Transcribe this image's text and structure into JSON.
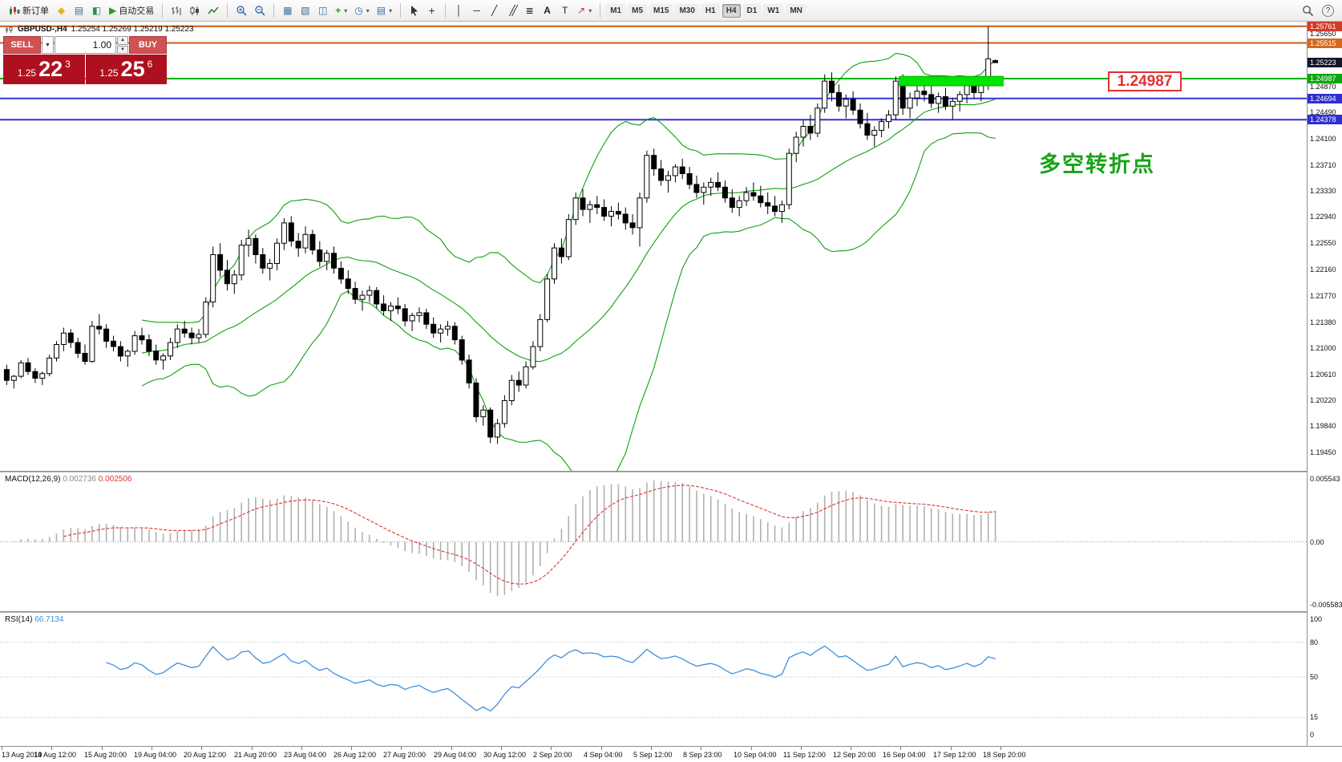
{
  "toolbar": {
    "new_order": "新订单",
    "autotrading": "自动交易",
    "timeframes": [
      "M1",
      "M5",
      "M15",
      "M30",
      "H1",
      "H4",
      "D1",
      "W1",
      "MN"
    ],
    "active_timeframe": "H4",
    "icon_names": [
      "new-order-icon",
      "metaeditor-icon",
      "market-watch-icon",
      "navigator-icon",
      "autotrading-icon",
      "bar-chart-icon",
      "candlestick-icon",
      "line-chart-icon",
      "zoom-in-icon",
      "zoom-out-icon",
      "tile-windows-icon",
      "cascade-windows-icon",
      "arrange-windows-icon",
      "add-indicator-icon",
      "periods-icon",
      "templates-icon",
      "cursor-icon",
      "crosshair-icon",
      "vertical-line-icon",
      "horizontal-line-icon",
      "trendline-icon",
      "channel-icon",
      "fibonacci-icon",
      "text-icon",
      "label-icon",
      "arrow-tool-icon",
      "search-icon",
      "help-icon"
    ]
  },
  "icons": {
    "metaeditor": "◆",
    "market_watch": "▤",
    "navigator": "◧",
    "autotrading_play": "▶",
    "tile_windows": "▦",
    "cascade_windows": "▧",
    "arrange_windows": "◫",
    "add_indicator": "+",
    "periods_clock": "◷",
    "dropdown": "▾",
    "crosshair": "+",
    "vertical_line": "│",
    "horizontal_line": "─",
    "trendline": "╱",
    "channel": "╱╱",
    "fibonacci": "≣",
    "text_tool": "A",
    "label_tool": "T",
    "arrow_tool": "↗",
    "help": "?",
    "vol_down": "▼",
    "spin_up": "▲",
    "spin_down": "▼"
  },
  "chart_header": {
    "symbol": "GBPUSD-,H4",
    "ohlc": "1.25254 1.25269 1.25219 1.25223"
  },
  "trade_panel": {
    "sell_label": "SELL",
    "buy_label": "BUY",
    "volume": "1.00",
    "sell_price_main": "1.25",
    "sell_price_big": "22",
    "sell_price_sup": "3",
    "buy_price_main": "1.25",
    "buy_price_big": "25",
    "buy_price_sup": "6"
  },
  "annotations": {
    "price_callout": "1.24987",
    "note_text": "多空转折点"
  },
  "price_axis": {
    "plain_labels": [
      "1.25650",
      "1.24870",
      "1.24490",
      "1.24100",
      "1.23710",
      "1.23330",
      "1.22940",
      "1.22550",
      "1.22160",
      "1.21770",
      "1.21380",
      "1.21000",
      "1.20610",
      "1.20220",
      "1.19840",
      "1.19450"
    ],
    "badges": [
      {
        "text": "1.25761",
        "price": 1.25761,
        "bg": "#d43c2a"
      },
      {
        "text": "1.25515",
        "price": 1.25515,
        "bg": "#d4691e"
      },
      {
        "text": "1.25223",
        "price": 1.25223,
        "bg": "#14142c"
      },
      {
        "text": "1.24987",
        "price": 1.24987,
        "bg": "#0ca60c"
      },
      {
        "text": "1.24694",
        "price": 1.24694,
        "bg": "#2f2fd0"
      },
      {
        "text": "1.24378",
        "price": 1.24378,
        "bg": "#2f2fd0"
      }
    ]
  },
  "time_axis": [
    "13 Aug 2019",
    "14 Aug 12:00",
    "15 Aug 20:00",
    "19 Aug 04:00",
    "20 Aug 12:00",
    "21 Aug 20:00",
    "23 Aug 04:00",
    "26 Aug 12:00",
    "27 Aug 20:00",
    "29 Aug 04:00",
    "30 Aug 12:00",
    "2 Sep 20:00",
    "4 Sep 04:00",
    "5 Sep 12:00",
    "8 Sep 23:00",
    "10 Sep 04:00",
    "11 Sep 12:00",
    "12 Sep 20:00",
    "16 Sep 04:00",
    "17 Sep 12:00",
    "18 Sep 20:00"
  ],
  "macd_panel": {
    "label": "MACD(12,26,9)",
    "value_main": "0.002736",
    "value_signal": "0.002506",
    "axis_top": "0.005543",
    "axis_zero": "0.00",
    "axis_bottom": "-0.005583"
  },
  "rsi_panel": {
    "label": "RSI(14)",
    "value": "66.7134",
    "axis_labels": [
      {
        "text": "100",
        "v": 100
      },
      {
        "text": "80",
        "v": 80
      },
      {
        "text": "50",
        "v": 50
      },
      {
        "text": "15",
        "v": 15
      },
      {
        "text": "0",
        "v": 0
      }
    ],
    "levels": [
      80,
      50,
      15
    ]
  },
  "chart_data": {
    "type": "candlestick",
    "symbol": "GBPUSD",
    "timeframe": "H4",
    "price_range": [
      1.1918,
      1.2583
    ],
    "current_bar": {
      "open": 1.25254,
      "high": 1.25269,
      "low": 1.25219,
      "close": 1.25223
    },
    "hlines": [
      {
        "price": 1.25761,
        "color": "#cc5a11",
        "width": 2
      },
      {
        "price": 1.25515,
        "color": "#cc5a11",
        "width": 2
      },
      {
        "price": 1.24987,
        "color": "#00b000",
        "width": 2
      },
      {
        "price": 1.24694,
        "color": "#3434d4",
        "width": 2
      },
      {
        "price": 1.24378,
        "color": "#3434d4",
        "width": 2
      }
    ],
    "zone": {
      "price_top": 1.2502,
      "price_bottom": 1.2488,
      "from_bar": 126,
      "to_bar": 140.6,
      "fill": "#00e400",
      "stroke": "#00b000"
    },
    "bollinger": {
      "period": 20,
      "deviation": 2,
      "color": "#0fa00f"
    },
    "macd": {
      "fast": 12,
      "slow": 26,
      "signal": 9,
      "histogram_color": "#b0b0b0",
      "signal_color": "#e03131"
    },
    "rsi": {
      "period": 14,
      "color": "#3f8fdd"
    },
    "candles": [
      [
        1.2068,
        1.2075,
        1.2045,
        1.2052
      ],
      [
        1.2052,
        1.206,
        1.204,
        1.2058
      ],
      [
        1.2058,
        1.2082,
        1.2055,
        1.2078
      ],
      [
        1.2078,
        1.2085,
        1.206,
        1.2065
      ],
      [
        1.2065,
        1.207,
        1.2048,
        1.2055
      ],
      [
        1.2055,
        1.2065,
        1.2045,
        1.2062
      ],
      [
        1.2062,
        1.209,
        1.2058,
        1.2085
      ],
      [
        1.2085,
        1.211,
        1.208,
        1.2105
      ],
      [
        1.2105,
        1.213,
        1.2095,
        1.2122
      ],
      [
        1.2122,
        1.2128,
        1.21,
        1.2108
      ],
      [
        1.2108,
        1.2115,
        1.2085,
        1.2092
      ],
      [
        1.2092,
        1.2105,
        1.2075,
        1.208
      ],
      [
        1.208,
        1.214,
        1.2078,
        1.2132
      ],
      [
        1.2132,
        1.215,
        1.212,
        1.2128
      ],
      [
        1.2128,
        1.2135,
        1.21,
        1.211
      ],
      [
        1.211,
        1.2118,
        1.2095,
        1.2102
      ],
      [
        1.2102,
        1.211,
        1.208,
        1.2088
      ],
      [
        1.2088,
        1.2098,
        1.2072,
        1.2095
      ],
      [
        1.2095,
        1.2125,
        1.209,
        1.2118
      ],
      [
        1.2118,
        1.213,
        1.2105,
        1.2112
      ],
      [
        1.2112,
        1.212,
        1.2088,
        1.2095
      ],
      [
        1.2095,
        1.2105,
        1.2075,
        1.2082
      ],
      [
        1.2082,
        1.2092,
        1.2068,
        1.2088
      ],
      [
        1.2088,
        1.2115,
        1.2082,
        1.2108
      ],
      [
        1.2108,
        1.2135,
        1.21,
        1.2128
      ],
      [
        1.2128,
        1.214,
        1.2115,
        1.2122
      ],
      [
        1.2122,
        1.213,
        1.2105,
        1.2115
      ],
      [
        1.2115,
        1.2128,
        1.2108,
        1.212
      ],
      [
        1.212,
        1.2175,
        1.2115,
        1.2168
      ],
      [
        1.2168,
        1.225,
        1.216,
        1.2238
      ],
      [
        1.2238,
        1.2255,
        1.2205,
        1.2215
      ],
      [
        1.2215,
        1.223,
        1.2185,
        1.2195
      ],
      [
        1.2195,
        1.2215,
        1.218,
        1.2208
      ],
      [
        1.2208,
        1.226,
        1.22,
        1.2252
      ],
      [
        1.2252,
        1.2275,
        1.2235,
        1.2262
      ],
      [
        1.2262,
        1.2268,
        1.2225,
        1.2238
      ],
      [
        1.2238,
        1.2248,
        1.221,
        1.2218
      ],
      [
        1.2218,
        1.2232,
        1.22,
        1.2225
      ],
      [
        1.2225,
        1.2262,
        1.2215,
        1.2255
      ],
      [
        1.2255,
        1.2292,
        1.2245,
        1.2285
      ],
      [
        1.2285,
        1.2295,
        1.225,
        1.2258
      ],
      [
        1.2258,
        1.227,
        1.2235,
        1.2248
      ],
      [
        1.2248,
        1.228,
        1.224,
        1.2268
      ],
      [
        1.2268,
        1.2275,
        1.2238,
        1.2245
      ],
      [
        1.2245,
        1.2258,
        1.222,
        1.2228
      ],
      [
        1.2228,
        1.2245,
        1.2215,
        1.224
      ],
      [
        1.224,
        1.225,
        1.221,
        1.2218
      ],
      [
        1.2218,
        1.2228,
        1.2195,
        1.2202
      ],
      [
        1.2202,
        1.2215,
        1.218,
        1.2188
      ],
      [
        1.2188,
        1.2198,
        1.2165,
        1.2172
      ],
      [
        1.2172,
        1.2185,
        1.2155,
        1.2178
      ],
      [
        1.2178,
        1.2192,
        1.2168,
        1.2185
      ],
      [
        1.2185,
        1.219,
        1.2158,
        1.2165
      ],
      [
        1.2165,
        1.2178,
        1.2148,
        1.2155
      ],
      [
        1.2155,
        1.2168,
        1.214,
        1.2162
      ],
      [
        1.2162,
        1.2175,
        1.215,
        1.2158
      ],
      [
        1.2158,
        1.2165,
        1.2132,
        1.214
      ],
      [
        1.214,
        1.2152,
        1.2125,
        1.2148
      ],
      [
        1.2148,
        1.216,
        1.2138,
        1.2152
      ],
      [
        1.2152,
        1.2158,
        1.2128,
        1.2135
      ],
      [
        1.2135,
        1.2145,
        1.2115,
        1.2122
      ],
      [
        1.2122,
        1.2135,
        1.2108,
        1.2128
      ],
      [
        1.2128,
        1.214,
        1.2118,
        1.2132
      ],
      [
        1.2132,
        1.2138,
        1.2105,
        1.2112
      ],
      [
        1.2112,
        1.2118,
        1.2075,
        1.2082
      ],
      [
        1.2082,
        1.209,
        1.204,
        1.2048
      ],
      [
        1.2048,
        1.2055,
        1.199,
        1.1998
      ],
      [
        1.1998,
        1.2015,
        1.1985,
        1.2008
      ],
      [
        1.2008,
        1.2012,
        1.1959,
        1.1968
      ],
      [
        1.1968,
        1.1995,
        1.1958,
        1.1988
      ],
      [
        1.1988,
        1.203,
        1.1982,
        1.2022
      ],
      [
        1.2022,
        1.206,
        1.2015,
        1.2052
      ],
      [
        1.2052,
        1.2065,
        1.2035,
        1.2045
      ],
      [
        1.2045,
        1.208,
        1.204,
        1.2072
      ],
      [
        1.2072,
        1.211,
        1.2068,
        1.2102
      ],
      [
        1.2102,
        1.215,
        1.2095,
        1.2142
      ],
      [
        1.2142,
        1.221,
        1.2138,
        1.2202
      ],
      [
        1.2202,
        1.2255,
        1.2195,
        1.2248
      ],
      [
        1.2248,
        1.2262,
        1.2225,
        1.2235
      ],
      [
        1.2235,
        1.2298,
        1.223,
        1.229
      ],
      [
        1.229,
        1.233,
        1.2282,
        1.2322
      ],
      [
        1.2322,
        1.2335,
        1.2295,
        1.2305
      ],
      [
        1.2305,
        1.2318,
        1.2285,
        1.2312
      ],
      [
        1.2312,
        1.2325,
        1.2298,
        1.2308
      ],
      [
        1.2308,
        1.232,
        1.2288,
        1.2295
      ],
      [
        1.2295,
        1.231,
        1.228,
        1.2302
      ],
      [
        1.2302,
        1.2315,
        1.229,
        1.2298
      ],
      [
        1.2298,
        1.2308,
        1.2275,
        1.2285
      ],
      [
        1.2285,
        1.2298,
        1.2268,
        1.2278
      ],
      [
        1.2278,
        1.233,
        1.225,
        1.2322
      ],
      [
        1.2322,
        1.2392,
        1.2315,
        1.2385
      ],
      [
        1.2385,
        1.2395,
        1.2355,
        1.2365
      ],
      [
        1.2365,
        1.2378,
        1.234,
        1.2348
      ],
      [
        1.2348,
        1.2362,
        1.233,
        1.2355
      ],
      [
        1.2355,
        1.2372,
        1.2345,
        1.2368
      ],
      [
        1.2368,
        1.238,
        1.235,
        1.2358
      ],
      [
        1.2358,
        1.2368,
        1.2335,
        1.2342
      ],
      [
        1.2342,
        1.2355,
        1.2322,
        1.233
      ],
      [
        1.233,
        1.2345,
        1.2312,
        1.2338
      ],
      [
        1.2338,
        1.2352,
        1.2325,
        1.2345
      ],
      [
        1.2345,
        1.236,
        1.2332,
        1.2338
      ],
      [
        1.2338,
        1.2348,
        1.2315,
        1.2322
      ],
      [
        1.2322,
        1.2335,
        1.23,
        1.2308
      ],
      [
        1.2308,
        1.2325,
        1.2295,
        1.2318
      ],
      [
        1.2318,
        1.2338,
        1.231,
        1.233
      ],
      [
        1.233,
        1.2345,
        1.2318,
        1.2325
      ],
      [
        1.2325,
        1.234,
        1.2308,
        1.2315
      ],
      [
        1.2315,
        1.233,
        1.2298,
        1.231
      ],
      [
        1.231,
        1.2325,
        1.2295,
        1.2302
      ],
      [
        1.2302,
        1.2318,
        1.2285,
        1.2312
      ],
      [
        1.2312,
        1.2395,
        1.2305,
        1.2388
      ],
      [
        1.2388,
        1.242,
        1.2375,
        1.2412
      ],
      [
        1.2412,
        1.2438,
        1.2398,
        1.2428
      ],
      [
        1.2428,
        1.2445,
        1.2408,
        1.2418
      ],
      [
        1.2418,
        1.2462,
        1.2412,
        1.2455
      ],
      [
        1.2455,
        1.2505,
        1.2448,
        1.2495
      ],
      [
        1.2495,
        1.2508,
        1.2465,
        1.2478
      ],
      [
        1.2478,
        1.249,
        1.245,
        1.2458
      ],
      [
        1.2458,
        1.2475,
        1.244,
        1.2468
      ],
      [
        1.2468,
        1.248,
        1.2445,
        1.2452
      ],
      [
        1.2452,
        1.2462,
        1.2425,
        1.2432
      ],
      [
        1.2432,
        1.2448,
        1.2408,
        1.2415
      ],
      [
        1.2415,
        1.2428,
        1.2398,
        1.2422
      ],
      [
        1.2422,
        1.244,
        1.2412,
        1.2435
      ],
      [
        1.2435,
        1.2452,
        1.2425,
        1.2445
      ],
      [
        1.2445,
        1.2502,
        1.2438,
        1.2495
      ],
      [
        1.2495,
        1.2505,
        1.2445,
        1.2455
      ],
      [
        1.2455,
        1.2478,
        1.244,
        1.247
      ],
      [
        1.247,
        1.2488,
        1.2458,
        1.248
      ],
      [
        1.248,
        1.2495,
        1.2465,
        1.2475
      ],
      [
        1.2475,
        1.249,
        1.2455,
        1.2462
      ],
      [
        1.2462,
        1.2478,
        1.2448,
        1.2472
      ],
      [
        1.2472,
        1.2485,
        1.2452,
        1.2458
      ],
      [
        1.2458,
        1.247,
        1.2438,
        1.2465
      ],
      [
        1.2465,
        1.248,
        1.245,
        1.2475
      ],
      [
        1.2475,
        1.2492,
        1.2462,
        1.2488
      ],
      [
        1.2488,
        1.2502,
        1.247,
        1.2478
      ],
      [
        1.2478,
        1.2495,
        1.2465,
        1.249
      ],
      [
        1.249,
        1.2576,
        1.2482,
        1.2528
      ],
      [
        1.25254,
        1.25269,
        1.25219,
        1.25223
      ]
    ]
  }
}
